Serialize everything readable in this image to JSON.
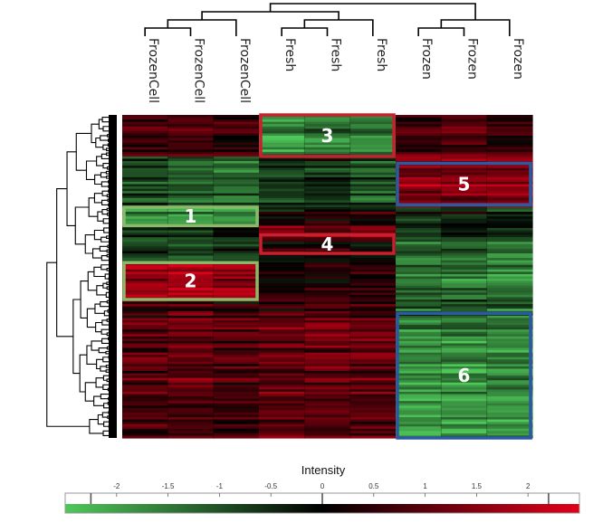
{
  "chart_data": {
    "type": "heatmap",
    "columns": [
      "FrozenCell",
      "FrozenCell",
      "FrozenCell",
      "Fresh",
      "Fresh",
      "Fresh",
      "Frozen",
      "Frozen",
      "Frozen"
    ],
    "row_count": 140,
    "value_range": [
      -2.5,
      2.5
    ],
    "colormap": {
      "low": "#4fc85a",
      "mid": "#000000",
      "high": "#e2001a"
    },
    "row_blocks": [
      {
        "rows": [
          0,
          18
        ],
        "values": [
          0.9,
          1.0,
          0.6,
          -1.6,
          -1.4,
          -1.5,
          0.7,
          1.0,
          0.5
        ]
      },
      {
        "rows": [
          18,
          40
        ],
        "values": [
          -0.8,
          -1.0,
          -1.2,
          -0.6,
          -0.5,
          -0.9,
          1.6,
          1.5,
          1.7
        ]
      },
      {
        "rows": [
          40,
          48
        ],
        "values": [
          -1.7,
          -1.8,
          -1.6,
          0.2,
          0.3,
          0.4,
          -0.4,
          -0.3,
          -0.4
        ]
      },
      {
        "rows": [
          48,
          55
        ],
        "values": [
          -0.7,
          -0.8,
          -0.4,
          1.3,
          1.2,
          1.4,
          -0.7,
          -0.6,
          -0.8
        ]
      },
      {
        "rows": [
          55,
          64
        ],
        "values": [
          -0.6,
          -0.7,
          -0.5,
          0.1,
          0.2,
          0.0,
          -1.2,
          -1.3,
          -1.5
        ]
      },
      {
        "rows": [
          64,
          80
        ],
        "values": [
          1.7,
          1.9,
          1.6,
          0.2,
          0.3,
          0.4,
          -1.4,
          -1.5,
          -1.6
        ]
      },
      {
        "rows": [
          80,
          88
        ],
        "values": [
          0.6,
          0.8,
          0.4,
          0.6,
          0.7,
          0.5,
          -1.1,
          -1.0,
          -1.3
        ]
      },
      {
        "rows": [
          88,
          140
        ],
        "values": [
          0.9,
          1.0,
          0.8,
          1.0,
          1.1,
          1.0,
          -1.7,
          -1.8,
          -1.7
        ]
      }
    ],
    "highlight_boxes": [
      {
        "label": "1",
        "color": "#8ab96a",
        "cols": [
          0,
          3
        ],
        "rows": [
          40,
          48
        ]
      },
      {
        "label": "2",
        "color": "#8ab96a",
        "cols": [
          0,
          3
        ],
        "rows": [
          64,
          80
        ]
      },
      {
        "label": "3",
        "color": "#c8202e",
        "cols": [
          3,
          6
        ],
        "rows": [
          0,
          18
        ]
      },
      {
        "label": "4",
        "color": "#c8202e",
        "cols": [
          3,
          6
        ],
        "rows": [
          52,
          60
        ]
      },
      {
        "label": "5",
        "color": "#2c5aa0",
        "cols": [
          6,
          9
        ],
        "rows": [
          21,
          39
        ]
      },
      {
        "label": "6",
        "color": "#2c5aa0",
        "cols": [
          6,
          9
        ],
        "rows": [
          86,
          140
        ]
      }
    ],
    "column_dendrogram": {
      "merges": [
        {
          "children": [
            0,
            1
          ],
          "h": 1
        },
        {
          "children": [
            9,
            2
          ],
          "h": 2
        },
        {
          "children": [
            3,
            4
          ],
          "h": 1
        },
        {
          "children": [
            11,
            5
          ],
          "h": 2
        },
        {
          "children": [
            6,
            7
          ],
          "h": 1
        },
        {
          "children": [
            13,
            8
          ],
          "h": 2
        },
        {
          "children": [
            10,
            12
          ],
          "h": 3
        },
        {
          "children": [
            15,
            14
          ],
          "h": 4
        }
      ]
    },
    "legend": {
      "title": "Intensity",
      "ticks": [
        -2,
        -1.5,
        -1,
        -0.5,
        0,
        0.5,
        1,
        1.5,
        2
      ],
      "tick_labels": [
        "-2",
        "-1.5",
        "-1",
        "-0.5",
        "0",
        "0.5",
        "1",
        "1.5",
        "2"
      ],
      "range": [
        -2.5,
        2.5
      ],
      "markers": [
        -2.25,
        0,
        2.2
      ]
    }
  },
  "colors": {
    "highlight_green": "#8ab96a",
    "highlight_red": "#c8202e",
    "highlight_blue": "#2c5aa0"
  }
}
